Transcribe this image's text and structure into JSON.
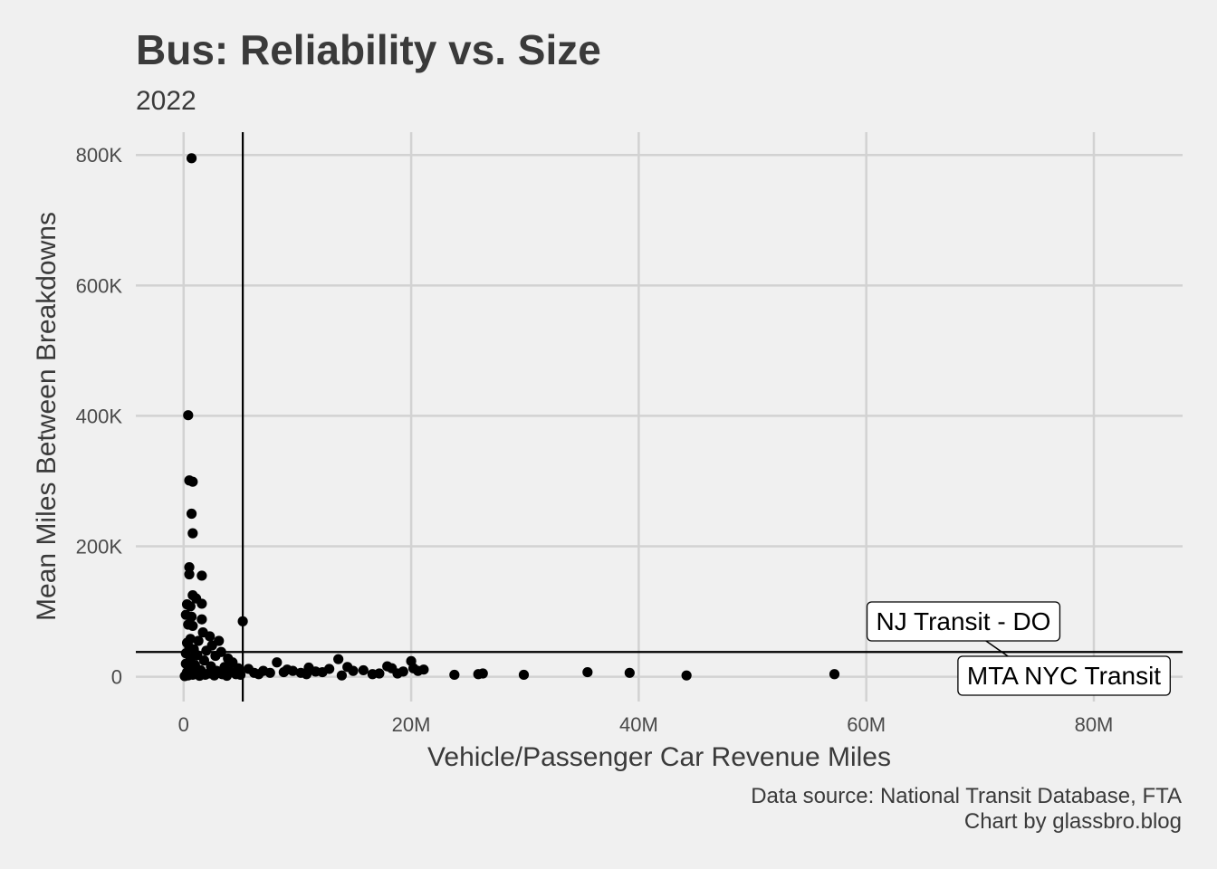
{
  "chart_data": {
    "type": "scatter",
    "title": "Bus: Reliability vs. Size",
    "subtitle": "2022",
    "xlabel": "Vehicle/Passenger Car Revenue Miles",
    "ylabel": "Mean Miles Between Breakdowns",
    "caption_lines": [
      "Data source: National Transit Database, FTA",
      "Chart by glassbro.blog"
    ],
    "xlim": [
      -4200000,
      87800000
    ],
    "ylim": [
      -38000,
      835000
    ],
    "x_ticks": [
      0,
      20000000,
      40000000,
      60000000,
      80000000
    ],
    "x_tick_labels": [
      "0",
      "20M",
      "40M",
      "60M",
      "80M"
    ],
    "y_ticks": [
      0,
      200000,
      400000,
      600000,
      800000
    ],
    "y_tick_labels": [
      "0",
      "200K",
      "400K",
      "600K",
      "800K"
    ],
    "grid": true,
    "reference_lines": {
      "vertical_x": 5200000,
      "horizontal_y": 38000
    },
    "annotations": [
      {
        "text": "NJ Transit - DO",
        "x": 69000000,
        "y": 38000
      },
      {
        "text": "MTA NYC Transit",
        "x": 72000000,
        "y": 6000
      }
    ],
    "points": [
      [
        700000,
        795000
      ],
      [
        400000,
        401000
      ],
      [
        500000,
        301000
      ],
      [
        800000,
        299000
      ],
      [
        700000,
        250000
      ],
      [
        800000,
        220000
      ],
      [
        500000,
        168000
      ],
      [
        500000,
        157000
      ],
      [
        1600000,
        155000
      ],
      [
        800000,
        125000
      ],
      [
        1100000,
        120000
      ],
      [
        300000,
        111000
      ],
      [
        600000,
        108000
      ],
      [
        1600000,
        112000
      ],
      [
        200000,
        95000
      ],
      [
        700000,
        92000
      ],
      [
        400000,
        80000
      ],
      [
        800000,
        78000
      ],
      [
        1600000,
        88000
      ],
      [
        5200000,
        85000
      ],
      [
        1700000,
        68000
      ],
      [
        2300000,
        62000
      ],
      [
        600000,
        58000
      ],
      [
        300000,
        52000
      ],
      [
        1300000,
        55000
      ],
      [
        2500000,
        48000
      ],
      [
        3100000,
        55000
      ],
      [
        500000,
        45000
      ],
      [
        900000,
        42000
      ],
      [
        2000000,
        40000
      ],
      [
        3300000,
        38000
      ],
      [
        200000,
        36000
      ],
      [
        1200000,
        33000
      ],
      [
        2800000,
        32000
      ],
      [
        3900000,
        28000
      ],
      [
        600000,
        28000
      ],
      [
        1800000,
        25000
      ],
      [
        4300000,
        22000
      ],
      [
        200000,
        20000
      ],
      [
        1000000,
        18000
      ],
      [
        2400000,
        16000
      ],
      [
        3600000,
        15000
      ],
      [
        4800000,
        13000
      ],
      [
        600000,
        12000
      ],
      [
        1500000,
        10000
      ],
      [
        2900000,
        9000
      ],
      [
        4100000,
        8000
      ],
      [
        300000,
        7000
      ],
      [
        1100000,
        6000
      ],
      [
        2200000,
        5000
      ],
      [
        3400000,
        4000
      ],
      [
        4600000,
        4000
      ],
      [
        800000,
        3000
      ],
      [
        1900000,
        3000
      ],
      [
        2700000,
        2000
      ],
      [
        400000,
        2000
      ],
      [
        1400000,
        1500
      ],
      [
        3800000,
        1500
      ],
      [
        5000000,
        3000
      ],
      [
        100000,
        1000
      ],
      [
        6200000,
        6000
      ],
      [
        7000000,
        9000
      ],
      [
        7600000,
        6000
      ],
      [
        8200000,
        22000
      ],
      [
        8800000,
        7000
      ],
      [
        9600000,
        9000
      ],
      [
        10300000,
        6000
      ],
      [
        11000000,
        14000
      ],
      [
        11600000,
        8000
      ],
      [
        12200000,
        7000
      ],
      [
        12800000,
        12000
      ],
      [
        13600000,
        27000
      ],
      [
        13900000,
        2000
      ],
      [
        14400000,
        15000
      ],
      [
        14900000,
        9000
      ],
      [
        15800000,
        10000
      ],
      [
        16600000,
        4000
      ],
      [
        17200000,
        5000
      ],
      [
        17900000,
        16000
      ],
      [
        18800000,
        5000
      ],
      [
        19300000,
        8000
      ],
      [
        20000000,
        24000
      ],
      [
        20200000,
        13000
      ],
      [
        20600000,
        9000
      ],
      [
        21100000,
        11000
      ],
      [
        5700000,
        12000
      ],
      [
        6600000,
        4000
      ],
      [
        9100000,
        11000
      ],
      [
        10800000,
        4000
      ],
      [
        18300000,
        13000
      ],
      [
        23800000,
        3000
      ],
      [
        25900000,
        4000
      ],
      [
        26300000,
        5000
      ],
      [
        29900000,
        3000
      ],
      [
        35500000,
        7000
      ],
      [
        39200000,
        6000
      ],
      [
        44200000,
        2000
      ],
      [
        57200000,
        4000
      ]
    ]
  }
}
